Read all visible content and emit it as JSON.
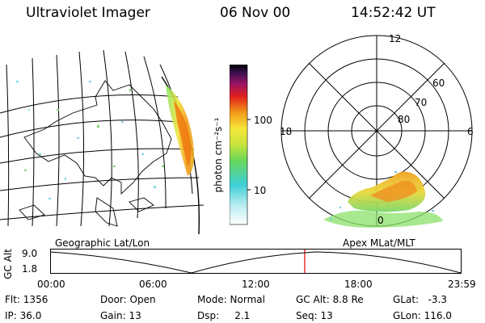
{
  "header": {
    "title": "Ultraviolet Imager",
    "date": "06 Nov 00",
    "time": "14:52:42 UT"
  },
  "geo_map": {
    "label": "Geographic Lat/Lon"
  },
  "polar_map": {
    "label": "Apex MLat/MLT",
    "lat_labels": [
      "60",
      "70",
      "80"
    ],
    "mlt_labels": [
      "12",
      "18",
      "6",
      "0"
    ]
  },
  "colorbar": {
    "unit_label": "photon cm⁻²s⁻¹",
    "tick_labels": [
      "100",
      "10"
    ]
  },
  "altitude_plot": {
    "axis_label": "GC Alt",
    "y_ticks": [
      "9.0",
      "1.8"
    ],
    "x_ticks": [
      "00:00",
      "06:00",
      "12:00",
      "18:00",
      "23:59"
    ],
    "current_time_marker_hours": 14.88
  },
  "info": {
    "flt": "Flt: 1356",
    "ip": "IP: 36.0",
    "door": "Door: Open",
    "gain": "Gain: 13",
    "mode": "Mode: Normal",
    "dsp": "Dsp:     2.1",
    "gc_alt": "GC Alt: 8.8 Re",
    "seq": "Seq: 13",
    "glat": "GLat:   -3.3",
    "glon": "GLon: 116.0"
  }
}
